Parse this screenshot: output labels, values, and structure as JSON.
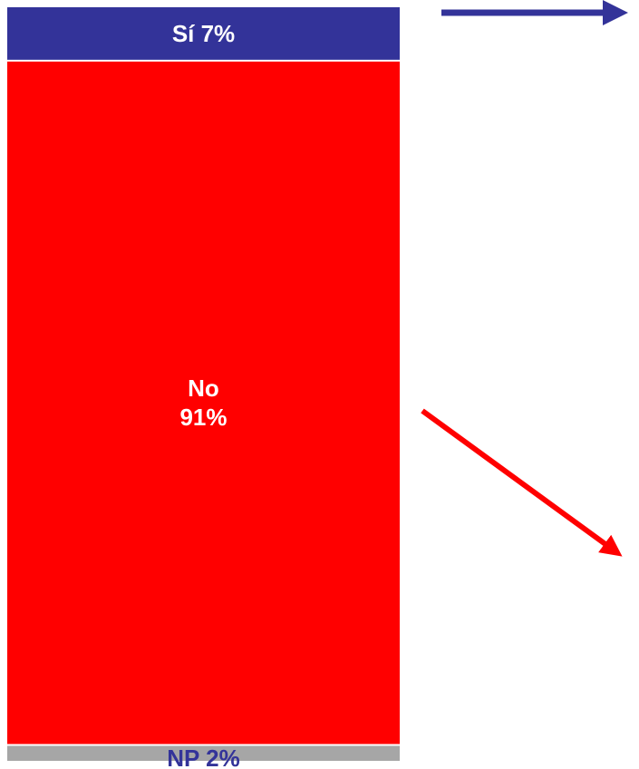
{
  "chart_data": {
    "type": "bar",
    "stacked": true,
    "orientation": "vertical",
    "segments": [
      {
        "label": "Sí",
        "value": 7,
        "display": "Sí  7%",
        "color": "#333399",
        "text_color": "#ffffff",
        "text_position": "inside"
      },
      {
        "label": "No",
        "value": 91,
        "display": [
          "No",
          "91%"
        ],
        "color": "#ff0000",
        "text_color": "#ffffff",
        "text_position": "inside"
      },
      {
        "label": "NP",
        "value": 2,
        "display": "NP 2%",
        "color": "#a6a6a6",
        "text_color": "#333399",
        "text_position": "below"
      }
    ],
    "arrows": [
      {
        "direction": "right",
        "color": "#333399"
      },
      {
        "direction": "down-right",
        "color": "#ff0000"
      }
    ],
    "grid": false,
    "legend": "none"
  }
}
